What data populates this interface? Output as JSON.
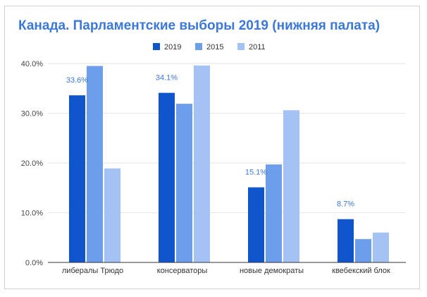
{
  "chart_data": {
    "type": "bar",
    "title": "Канада. Парламентские выборы 2019 (нижняя палата)",
    "categories": [
      "либералы Трюдо",
      "консерваторы",
      "новые демократы",
      "квебекский блок"
    ],
    "series": [
      {
        "name": "2019",
        "values": [
          33.6,
          34.1,
          15.1,
          8.7
        ],
        "color": "#1155cc"
      },
      {
        "name": "2015",
        "values": [
          39.5,
          31.9,
          19.7,
          4.7
        ],
        "color": "#6d9eeb"
      },
      {
        "name": "2011",
        "values": [
          18.9,
          39.6,
          30.6,
          6.0
        ],
        "color": "#a4c2f4"
      }
    ],
    "data_labels": [
      "33.6%",
      "34.1%",
      "15.1%",
      "8.7%"
    ],
    "y_ticks": [
      "0.0%",
      "10.0%",
      "20.0%",
      "30.0%",
      "40.0%"
    ],
    "ylim": [
      0,
      40
    ],
    "grid": true,
    "legend_position": "top",
    "title_color": "#3c78d8",
    "label_color": "#3c78d8"
  }
}
